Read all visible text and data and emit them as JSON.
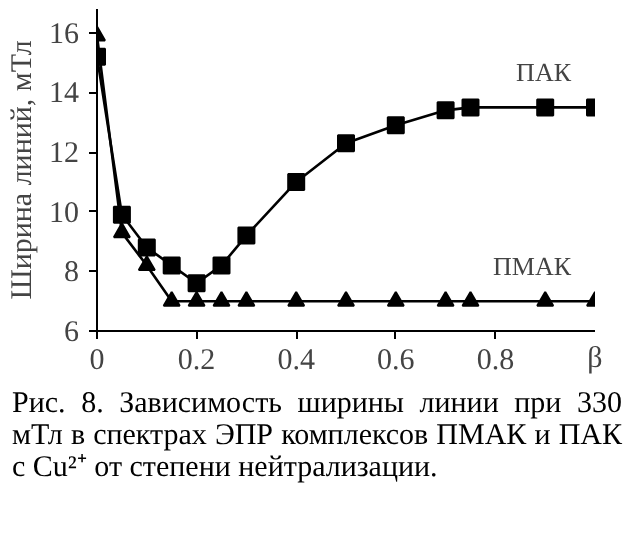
{
  "chart_data": {
    "type": "line",
    "xlabel": "β",
    "ylabel": "Ширина линий, мТл",
    "x": [
      0,
      0.05,
      0.1,
      0.15,
      0.2,
      0.25,
      0.3,
      0.4,
      0.5,
      0.6,
      0.7,
      0.75,
      0.9,
      1.0
    ],
    "series": [
      {
        "name": "ПАК",
        "color": "#000000",
        "marker": "square",
        "values": [
          15.2,
          9.9,
          8.8,
          8.2,
          7.6,
          8.2,
          9.2,
          11.0,
          12.3,
          12.9,
          13.4,
          13.5,
          13.5,
          13.5
        ]
      },
      {
        "name": "ПМАК",
        "color": "#000000",
        "marker": "triangle",
        "values": [
          15.9,
          9.3,
          8.2,
          7.0,
          7.0,
          7.0,
          7.0,
          7.0,
          7.0,
          7.0,
          7.0,
          7.0,
          7.0,
          7.0
        ]
      }
    ],
    "xlim": [
      0,
      1
    ],
    "xticks": [
      0,
      0.2,
      0.4,
      0.6,
      0.8
    ],
    "ylim": [
      6,
      16.8
    ],
    "yticks": [
      6,
      8,
      10,
      12,
      14,
      16
    ],
    "grid": false,
    "annotations": [
      "Рис. 8. Зависимость ширины линии при 330 мТл в спектрах ЭПР комплексов ПМАК и ПАК с Cu²⁺ от степени нейтрализации."
    ]
  }
}
